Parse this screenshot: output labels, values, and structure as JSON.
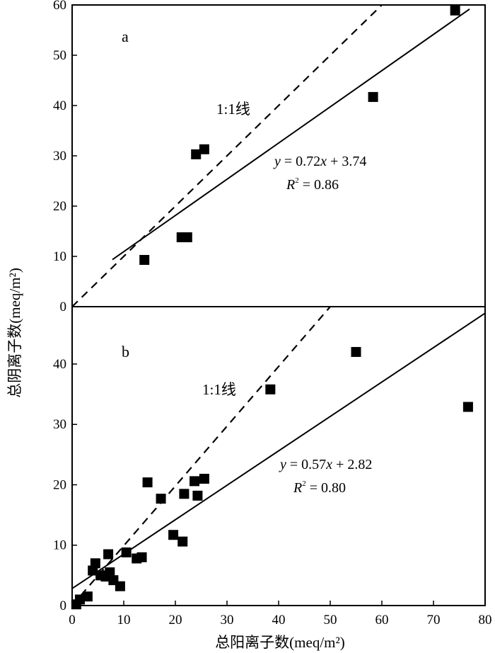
{
  "chart_data": [
    {
      "panel": "a",
      "type": "scatter",
      "ylabel": "总阴离子数(meq/m²)",
      "xlim": [
        0,
        80
      ],
      "ylim": [
        0,
        60
      ],
      "yticks": [
        0,
        10,
        20,
        30,
        40,
        50,
        60
      ],
      "series": [
        {
          "points": [
            {
              "x": 14.0,
              "y": 9.3
            },
            {
              "x": 21.2,
              "y": 13.8
            },
            {
              "x": 22.3,
              "y": 13.8
            },
            {
              "x": 24.0,
              "y": 30.3
            },
            {
              "x": 25.6,
              "y": 31.3
            },
            {
              "x": 58.3,
              "y": 41.7
            },
            {
              "x": 74.2,
              "y": 58.9
            }
          ]
        }
      ],
      "fit_line": {
        "slope": 0.72,
        "intercept": 3.74,
        "x_range": [
          7.8,
          77.0
        ]
      },
      "one_to_one_line": {
        "x_range": [
          0,
          60
        ]
      },
      "annotations": {
        "one_to_one_label": "1:1线",
        "eq_y": "y",
        "eq_x": "x",
        "eq_rest": " = 0.72",
        "eq_tail": " + 3.74",
        "r2_r": "R",
        "r2_exp": "2",
        "r2_value": " = 0.86"
      }
    },
    {
      "panel": "b",
      "type": "scatter",
      "xlabel": "总阳离子数(meq/m²)",
      "xlim": [
        0,
        80
      ],
      "ylim": [
        0,
        49.5
      ],
      "xticks": [
        0,
        10,
        20,
        30,
        40,
        50,
        60,
        70,
        80
      ],
      "yticks": [
        0,
        10,
        20,
        30,
        40
      ],
      "series": [
        {
          "points": [
            {
              "x": 0.8,
              "y": 0.2
            },
            {
              "x": 1.5,
              "y": 1.0
            },
            {
              "x": 3.0,
              "y": 1.5
            },
            {
              "x": 4.0,
              "y": 5.8
            },
            {
              "x": 4.5,
              "y": 7.0
            },
            {
              "x": 5.5,
              "y": 5.0
            },
            {
              "x": 6.5,
              "y": 4.8
            },
            {
              "x": 7.0,
              "y": 8.5
            },
            {
              "x": 7.3,
              "y": 5.5
            },
            {
              "x": 8.0,
              "y": 4.2
            },
            {
              "x": 9.3,
              "y": 3.2
            },
            {
              "x": 10.5,
              "y": 8.8
            },
            {
              "x": 12.5,
              "y": 7.8
            },
            {
              "x": 13.5,
              "y": 8.0
            },
            {
              "x": 14.6,
              "y": 20.4
            },
            {
              "x": 17.2,
              "y": 17.7
            },
            {
              "x": 19.6,
              "y": 11.7
            },
            {
              "x": 21.4,
              "y": 10.6
            },
            {
              "x": 21.7,
              "y": 18.5
            },
            {
              "x": 23.7,
              "y": 20.6
            },
            {
              "x": 24.3,
              "y": 18.2
            },
            {
              "x": 25.6,
              "y": 21.0
            },
            {
              "x": 38.4,
              "y": 35.8
            },
            {
              "x": 55.0,
              "y": 42.0
            },
            {
              "x": 76.7,
              "y": 32.9
            }
          ]
        }
      ],
      "fit_line": {
        "slope": 0.57,
        "intercept": 2.82,
        "x_range": [
          0,
          80
        ]
      },
      "one_to_one_line": {
        "x_range": [
          0,
          50
        ]
      },
      "annotations": {
        "one_to_one_label": "1:1线",
        "eq_y": "y",
        "eq_x": "x",
        "eq_rest": " = 0.57",
        "eq_tail": " + 2.82",
        "r2_r": "R",
        "r2_exp": "2",
        "r2_value": " = 0.80"
      }
    }
  ]
}
